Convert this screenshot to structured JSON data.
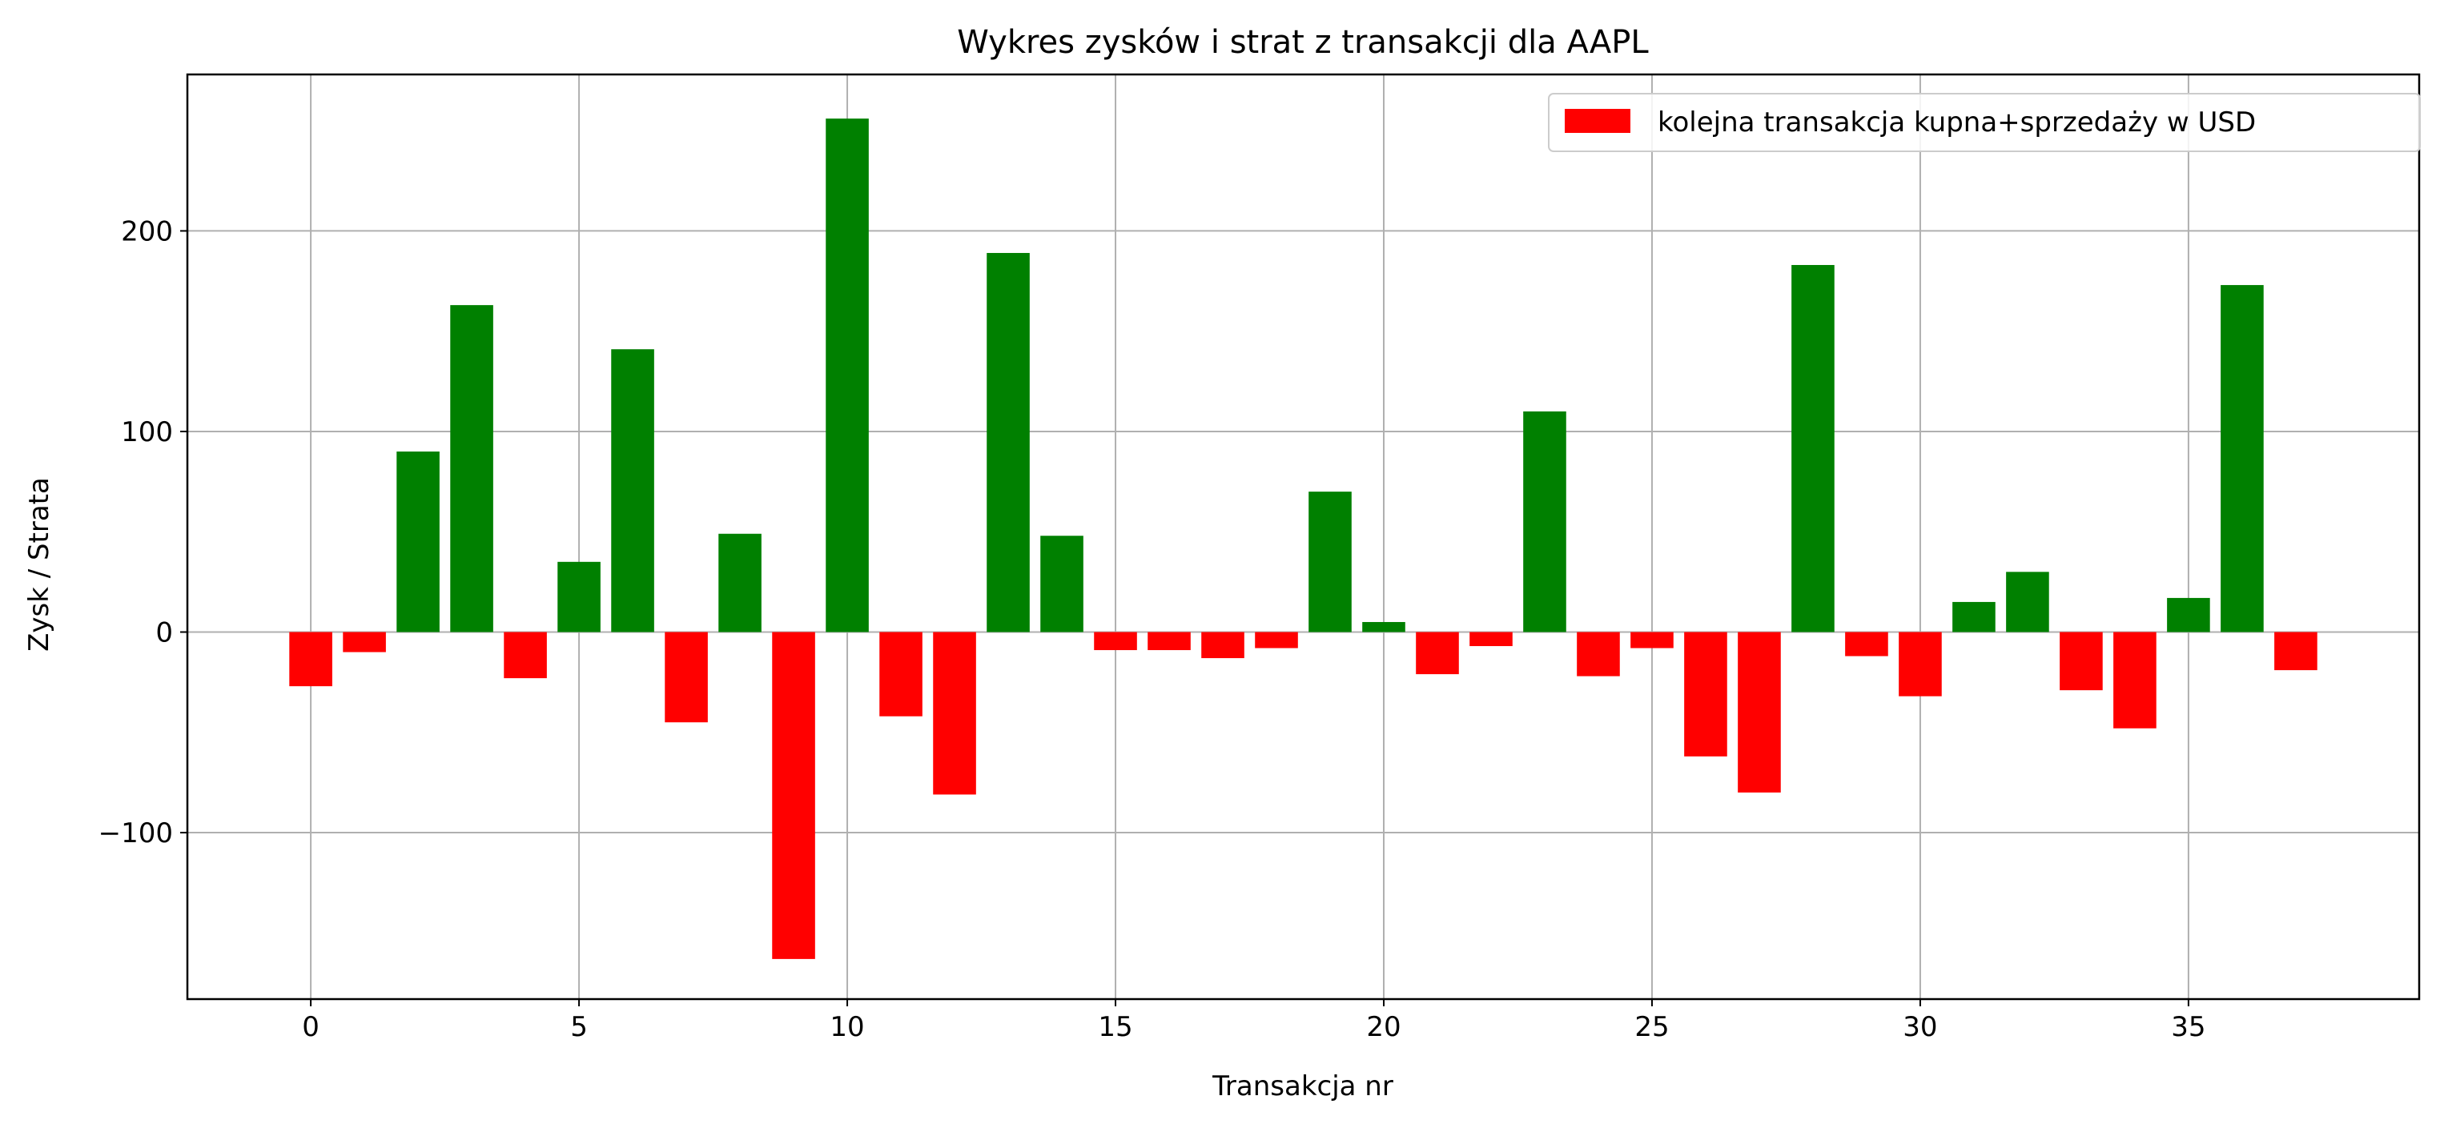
{
  "chart_data": {
    "type": "bar",
    "title": "Wykres zysków i strat z transakcji dla AAPL",
    "xlabel": "Transakcja nr",
    "ylabel": "Zysk / Strata",
    "legend": {
      "label": "kolejna transakcja kupna+sprzedaży w USD",
      "placement": "top-right"
    },
    "grid": true,
    "xlim": [
      -2.3,
      39.3
    ],
    "ylim": [
      -183,
      278
    ],
    "xticks": [
      0,
      5,
      10,
      15,
      20,
      25,
      30,
      35
    ],
    "yticks": [
      -100,
      0,
      100,
      200
    ],
    "ytick_labels": [
      "−100",
      "0",
      "100",
      "200"
    ],
    "x": [
      0,
      1,
      2,
      3,
      4,
      5,
      6,
      7,
      8,
      9,
      10,
      11,
      12,
      13,
      14,
      15,
      16,
      17,
      18,
      19,
      20,
      21,
      22,
      23,
      24,
      25,
      26,
      27,
      28,
      29,
      30,
      31,
      32,
      33,
      34,
      35,
      36,
      37
    ],
    "values": [
      -27,
      -10,
      90,
      163,
      -23,
      35,
      141,
      -45,
      49,
      -163,
      256,
      -42,
      -81,
      189,
      48,
      -9,
      -9,
      -13,
      -8,
      70,
      5,
      -21,
      -7,
      110,
      -22,
      -8,
      -62,
      -80,
      183,
      -12,
      -32,
      15,
      30,
      -29,
      -48,
      17,
      173,
      -19
    ],
    "colors": {
      "positive": "#008000",
      "negative": "#ff0000",
      "grid": "#b0b0b0"
    }
  }
}
